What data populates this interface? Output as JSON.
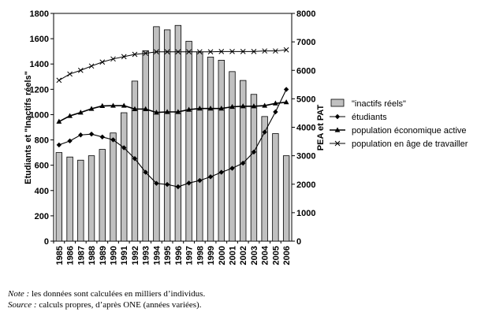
{
  "chart_data": {
    "type": "bar+line",
    "categories": [
      "1985",
      "1986",
      "1987",
      "1988",
      "1989",
      "1990",
      "1991",
      "1992",
      "1993",
      "1994",
      "1995",
      "1996",
      "1997",
      "1998",
      "1999",
      "2000",
      "2001",
      "2002",
      "2003",
      "2004",
      "2005",
      "2006"
    ],
    "y_left": {
      "label": "Etudiants et \"Inactifs réels\"",
      "ylim": [
        0,
        1800
      ],
      "ticks": [
        0,
        200,
        400,
        600,
        800,
        1000,
        1200,
        1400,
        1600,
        1800
      ]
    },
    "y_right": {
      "label": "PEA et PAT",
      "ylim": [
        0,
        8000
      ],
      "ticks": [
        0,
        1000,
        2000,
        3000,
        4000,
        5000,
        6000,
        7000,
        8000
      ]
    },
    "series": [
      {
        "name": "\"inactifs réels\"",
        "type": "bar",
        "axis": "left",
        "color": "#c0c0c0",
        "values": [
          700,
          665,
          640,
          675,
          725,
          855,
          1015,
          1265,
          1505,
          1695,
          1670,
          1705,
          1580,
          1495,
          1455,
          1430,
          1340,
          1270,
          1160,
          985,
          850,
          675
        ]
      },
      {
        "name": "étudiants",
        "type": "line",
        "axis": "right",
        "marker": "diamond",
        "values": [
          3380,
          3520,
          3730,
          3760,
          3660,
          3560,
          3280,
          2900,
          2420,
          2030,
          1990,
          1910,
          2040,
          2130,
          2260,
          2420,
          2560,
          2740,
          3130,
          3830,
          4540,
          5330
        ]
      },
      {
        "name": "population économique active",
        "type": "line",
        "axis": "right",
        "marker": "triangle",
        "values": [
          4200,
          4400,
          4520,
          4650,
          4750,
          4760,
          4760,
          4640,
          4640,
          4520,
          4540,
          4540,
          4620,
          4660,
          4660,
          4660,
          4720,
          4740,
          4740,
          4760,
          4840,
          4880
        ]
      },
      {
        "name": "population en âge de travailler",
        "type": "line",
        "axis": "right",
        "marker": "x",
        "values": [
          5650,
          5870,
          6000,
          6150,
          6290,
          6400,
          6480,
          6560,
          6600,
          6650,
          6650,
          6650,
          6650,
          6650,
          6650,
          6660,
          6660,
          6660,
          6660,
          6680,
          6680,
          6720
        ]
      }
    ],
    "grid": false,
    "legend": "right"
  },
  "notes": {
    "note_label": "Note :",
    "note_text": " les données sont calculées en milliers d’individus.",
    "source_label": "Source :",
    "source_text": " calculs propres, d’après ONE (années variées)."
  }
}
